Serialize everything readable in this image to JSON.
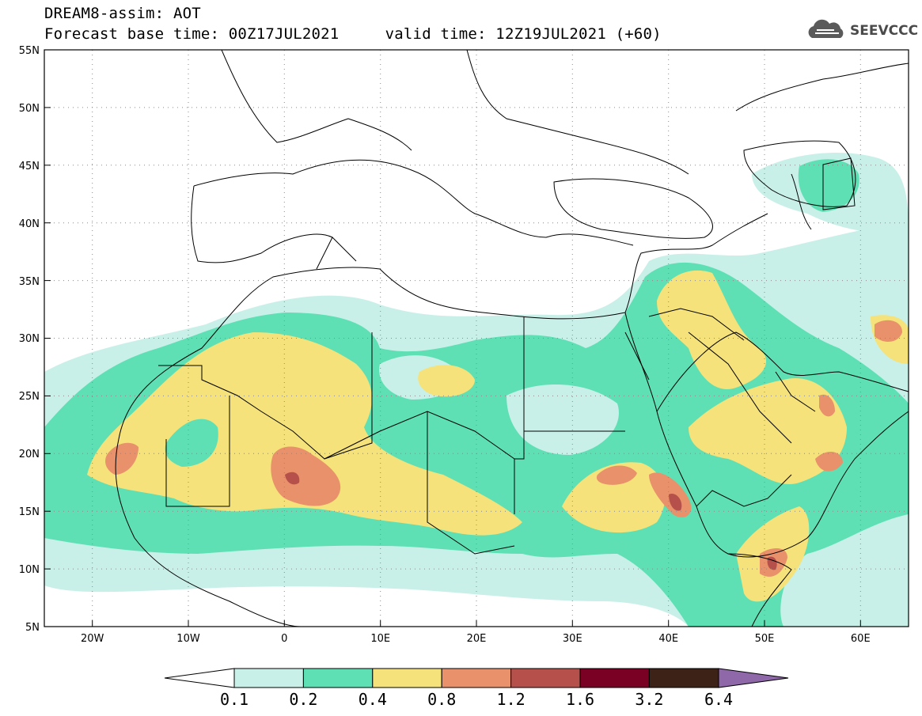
{
  "header": {
    "title": "DREAM8-assim: AOT",
    "forecast_line": "Forecast base time: 00Z17JUL2021     valid time: 12Z19JUL2021 (+60)"
  },
  "logo": {
    "text": "SEEVCCC",
    "icon": "cloud-logo-icon"
  },
  "map": {
    "lon_range": [
      -25,
      65
    ],
    "lat_range": [
      5,
      55
    ],
    "lat_ticks": [
      "55N",
      "50N",
      "45N",
      "40N",
      "35N",
      "30N",
      "25N",
      "20N",
      "15N",
      "10N",
      "5N"
    ],
    "lon_ticks": [
      "20W",
      "10W",
      "0",
      "10E",
      "20E",
      "30E",
      "40E",
      "50E",
      "60E"
    ],
    "grid": "dotted"
  },
  "colorbar": {
    "labels": [
      "0.1",
      "0.2",
      "0.4",
      "0.8",
      "1.2",
      "1.6",
      "3.2",
      "6.4"
    ],
    "colors": [
      "#ffffff",
      "#c9f0e8",
      "#5ee0b4",
      "#f5e27a",
      "#e8916a",
      "#b5504a",
      "#7a0024",
      "#3d2218",
      "#8e68a8"
    ]
  },
  "palette": {
    "c01": "#c9f0e8",
    "c02": "#5ee0b4",
    "c04": "#f5e27a",
    "c08": "#e8916a",
    "c12": "#b5504a",
    "c16": "#7a0024"
  }
}
